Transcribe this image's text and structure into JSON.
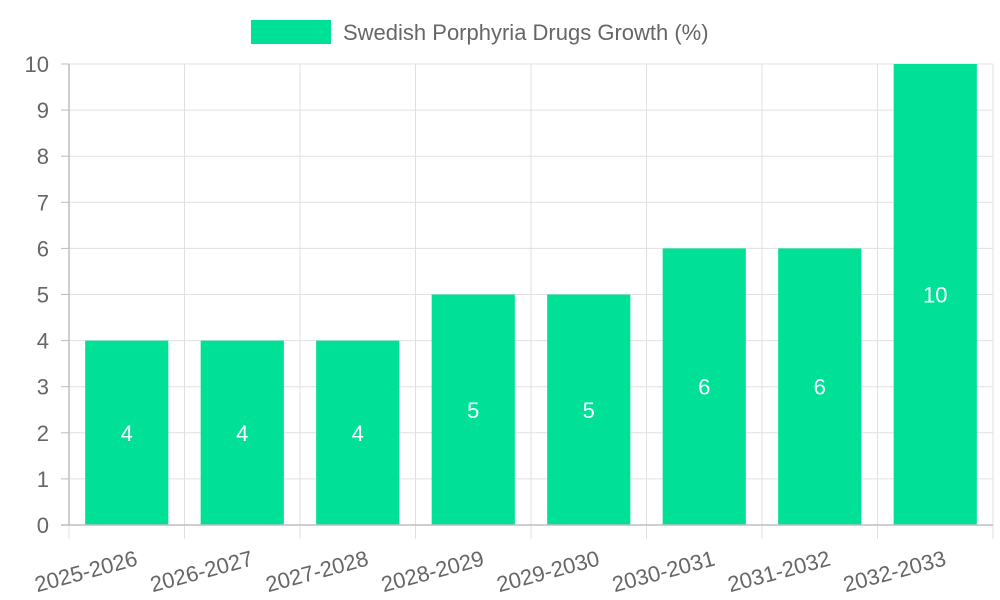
{
  "chart_data": {
    "type": "bar",
    "categories": [
      "2025-2026",
      "2026-2027",
      "2027-2028",
      "2028-2029",
      "2029-2030",
      "2030-2031",
      "2031-2032",
      "2032-2033"
    ],
    "series": [
      {
        "name": "Swedish Porphyria Drugs Growth (%)",
        "values": [
          4,
          4,
          4,
          5,
          5,
          6,
          6,
          10
        ]
      }
    ],
    "ylim": [
      0,
      10
    ],
    "yticks": [
      0,
      1,
      2,
      3,
      4,
      5,
      6,
      7,
      8,
      9,
      10
    ],
    "grid": true,
    "legend": "top-center",
    "data_labels": true,
    "colors": {
      "bar": "#00E096",
      "grid": "#E0E0E0",
      "axis": "#BDBDBD",
      "text": "#666666",
      "label": "#FFFFFF"
    }
  }
}
